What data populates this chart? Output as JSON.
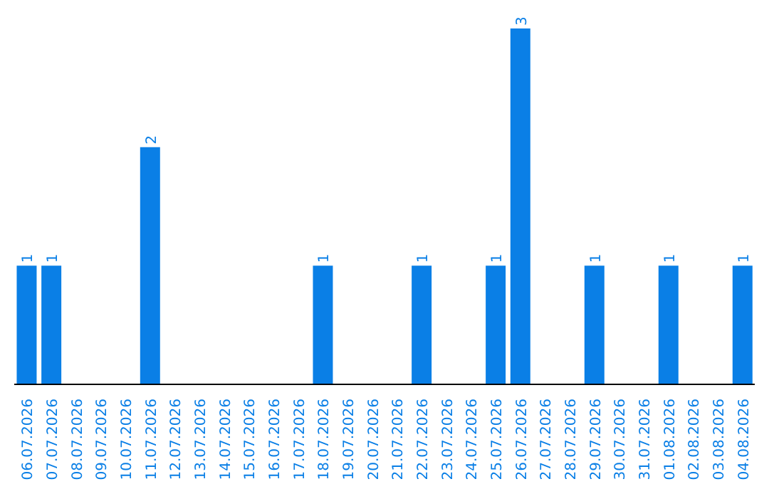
{
  "chart_data": {
    "type": "bar",
    "categories": [
      "06.07.2026",
      "07.07.2026",
      "08.07.2026",
      "09.07.2026",
      "10.07.2026",
      "11.07.2026",
      "12.07.2026",
      "13.07.2026",
      "14.07.2026",
      "15.07.2026",
      "16.07.2026",
      "17.07.2026",
      "18.07.2026",
      "19.07.2026",
      "20.07.2026",
      "21.07.2026",
      "22.07.2026",
      "23.07.2026",
      "24.07.2026",
      "25.07.2026",
      "26.07.2026",
      "27.07.2026",
      "28.07.2026",
      "29.07.2026",
      "30.07.2026",
      "31.07.2026",
      "01.08.2026",
      "02.08.2026",
      "03.08.2026",
      "04.08.2026"
    ],
    "values": [
      1,
      1,
      0,
      0,
      0,
      2,
      0,
      0,
      0,
      0,
      0,
      0,
      1,
      0,
      0,
      0,
      1,
      0,
      0,
      1,
      3,
      0,
      0,
      1,
      0,
      0,
      1,
      0,
      0,
      1
    ],
    "value_labels": [
      "1",
      "1",
      null,
      null,
      null,
      "2",
      null,
      null,
      null,
      null,
      null,
      null,
      "1",
      null,
      null,
      null,
      "1",
      null,
      null,
      "1",
      "3",
      null,
      null,
      "1",
      null,
      null,
      "1",
      null,
      null,
      "1"
    ],
    "color": "#0a7fe6"
  }
}
